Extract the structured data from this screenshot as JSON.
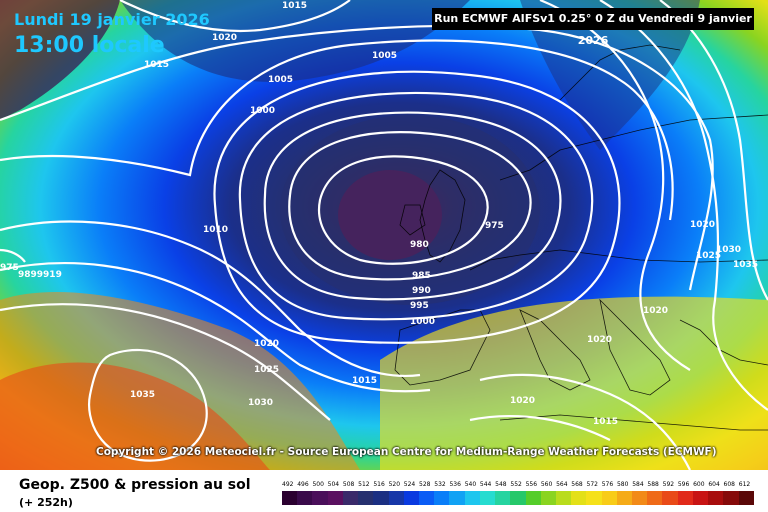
{
  "header": {
    "date": "Lundi 19 janvier 2026",
    "time": "13:00 locale",
    "run": "Run ECMWF AIFSv1 0.25° 0 Z du Vendredi 9 janvier 2026"
  },
  "copyright": "Copyright © 2026 Meteociel.fr - Source European Centre for Medium-Range Weather Forecasts (ECMWF)",
  "footer": {
    "product": "Geop. Z500 & pression au sol",
    "lead": "(+ 252h)"
  },
  "scale": {
    "values": [
      "492",
      "496",
      "500",
      "504",
      "508",
      "512",
      "516",
      "520",
      "524",
      "528",
      "532",
      "536",
      "540",
      "544",
      "548",
      "552",
      "556",
      "560",
      "564",
      "568",
      "572",
      "576",
      "580",
      "584",
      "588",
      "592",
      "596",
      "600",
      "604",
      "608",
      "612"
    ],
    "colors": [
      "#2b0030",
      "#3a0a4a",
      "#4a0f5a",
      "#5a1060",
      "#3a2a6a",
      "#26306f",
      "#1b2f82",
      "#1737a8",
      "#0a3ae0",
      "#0a5cf5",
      "#0a7ef8",
      "#11a2f4",
      "#1ec6ee",
      "#26dcd0",
      "#26d4a0",
      "#26c86a",
      "#55cd2a",
      "#8ad420",
      "#b9dc1c",
      "#e3e018",
      "#f5e11a",
      "#f8cc18",
      "#f5ab18",
      "#f28a18",
      "#ef6a18",
      "#e94a18",
      "#e12a1a",
      "#c81414",
      "#a80d0d",
      "#860a0a",
      "#5a0808"
    ]
  },
  "isobars": [
    "1015",
    "1020",
    "1015",
    "1005",
    "1005",
    "1000",
    "975",
    "9899919",
    "975",
    "1010",
    "980",
    "985",
    "990",
    "995",
    "1000",
    "1020",
    "1025",
    "1030",
    "1035",
    "1015",
    "1020",
    "1015",
    "1020",
    "1020",
    "1030",
    "1025",
    "1035",
    "1020"
  ]
}
